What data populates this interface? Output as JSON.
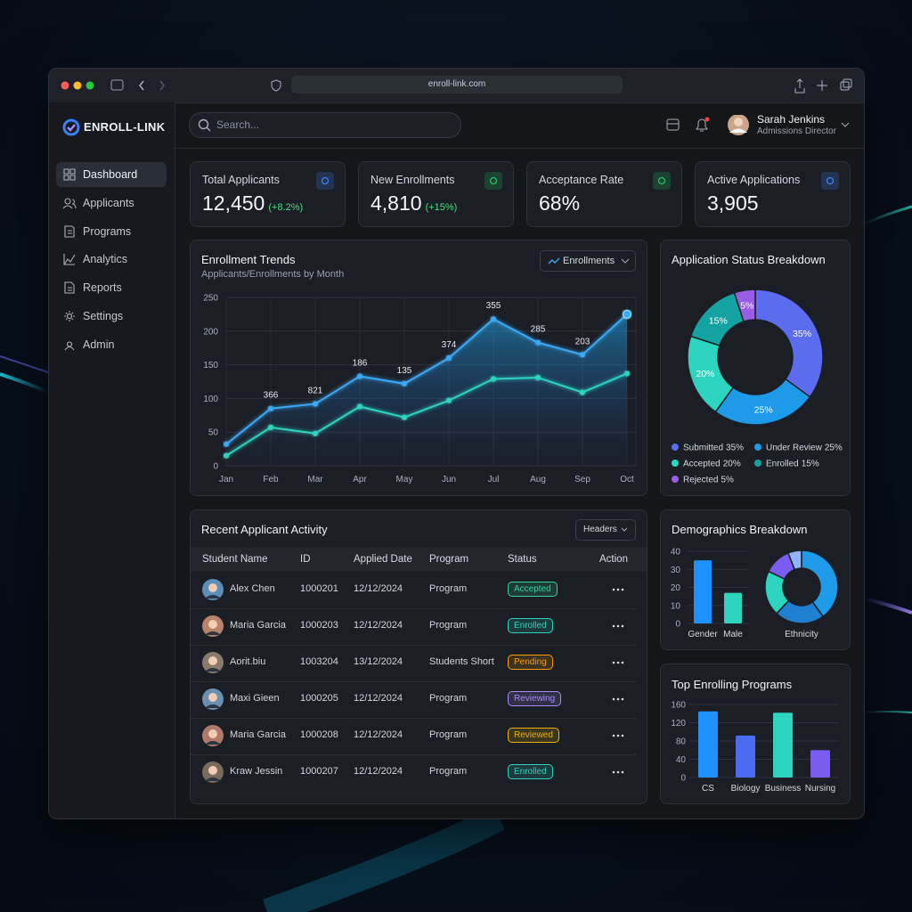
{
  "browser": {
    "url": "enroll-link.com"
  },
  "sidebar": {
    "brand": "ENROLL-LINK",
    "nav": [
      "Dashboard",
      "Applicants",
      "Programs",
      "Analytics",
      "Reports",
      "Settings",
      "Admin"
    ]
  },
  "header": {
    "search_placeholder": "Search...",
    "user": {
      "name": "Sarah Jenkins",
      "role": "Admissions Director"
    }
  },
  "kpis": [
    {
      "label": "Total Applicants",
      "value": "12,450",
      "change": "(+8.2%)"
    },
    {
      "label": "New Enrollments",
      "value": "4,810",
      "change": "(+15%)"
    },
    {
      "label": "Acceptance Rate",
      "value": "68%"
    },
    {
      "label": "Active Applications",
      "value": "3,905"
    }
  ],
  "chart_data": [
    {
      "type": "line",
      "title": "Enrollment Trends",
      "subtitle": "Applicants/Enrollments by Month",
      "dropdown": "Enrollments",
      "categories": [
        "Jan",
        "Feb",
        "Mar",
        "Apr",
        "May",
        "Jun",
        "Jul",
        "Aug",
        "Sep",
        "Oct"
      ],
      "series": [
        {
          "color": "#3ba9f5",
          "values": [
            32,
            85,
            92,
            133,
            122,
            160,
            218,
            183,
            165,
            225
          ]
        },
        {
          "color": "#2dd4bf",
          "values": [
            15,
            57,
            48,
            88,
            72,
            97,
            129,
            131,
            109,
            137
          ]
        }
      ],
      "annotations": [
        {
          "x": "Feb",
          "text": "366"
        },
        {
          "x": "Mar",
          "text": "821"
        },
        {
          "x": "Apr",
          "text": "186"
        },
        {
          "x": "May",
          "text": "135"
        },
        {
          "x": "Jun",
          "text": "374"
        },
        {
          "x": "Jul",
          "text": "355"
        },
        {
          "x": "Aug",
          "text": "285"
        },
        {
          "x": "Sep",
          "text": "203"
        }
      ],
      "ylim": [
        0,
        250
      ],
      "yticks": [
        0,
        50,
        100,
        150,
        200,
        250
      ],
      "grid": true
    },
    {
      "type": "pie",
      "title": "Application Status Breakdown",
      "categories": [
        "Submitted",
        "Under Review",
        "Accepted",
        "Enrolled",
        "Rejected"
      ],
      "values": [
        35,
        25,
        20,
        15,
        5
      ],
      "value_labels": [
        "35%",
        "25%",
        "20%",
        "15%",
        "5%"
      ],
      "colors": [
        "#5b6cf0",
        "#1e9be8",
        "#2dd4bf",
        "#14a3a3",
        "#9b5de5"
      ],
      "legend": "bottom"
    },
    {
      "type": "bar",
      "title": "Demographics Breakdown",
      "categories": [
        "Gender",
        "Male"
      ],
      "values": [
        35,
        17
      ],
      "colors": [
        "#1e90ff",
        "#2dd4bf"
      ],
      "ylim": [
        0,
        40
      ],
      "yticks": [
        0,
        10,
        20,
        30,
        40
      ],
      "grid": true
    },
    {
      "type": "pie",
      "title": "Ethnicity",
      "values": [
        40,
        22,
        20,
        12,
        6
      ],
      "colors": [
        "#1e9be8",
        "#1f7fd1",
        "#2dd4bf",
        "#7b5cf0",
        "#8fb3ff"
      ]
    },
    {
      "type": "bar",
      "title": "Top Enrolling Programs",
      "categories": [
        "CS",
        "Biology",
        "Business",
        "Nursing"
      ],
      "values": [
        145,
        92,
        142,
        60
      ],
      "colors": [
        "#1e90ff",
        "#4a6cf0",
        "#2dd4bf",
        "#7b5cf0"
      ],
      "ylim": [
        0,
        160
      ],
      "yticks": [
        0,
        40,
        80,
        120,
        160
      ],
      "grid": true
    }
  ],
  "table": {
    "title": "Recent Applicant Activity",
    "button": "Headers",
    "columns": [
      "Student Name",
      "ID",
      "Applied Date",
      "Program",
      "Status",
      "Action"
    ],
    "rows": [
      [
        "Alex Chen",
        "1000201",
        "12/12/2024",
        "Program",
        "Accepted"
      ],
      [
        "Maria Garcia",
        "1000203",
        "12/12/2024",
        "Program",
        "Enrolled"
      ],
      [
        "Aorit.biu",
        "1003204",
        "13/12/2024",
        "Students Short",
        "Pending"
      ],
      [
        "Maxi Gieen",
        "1000205",
        "12/12/2024",
        "Program",
        "Reviewing"
      ],
      [
        "Maria Garcia",
        "1000208",
        "12/12/2024",
        "Program",
        "Reviewed"
      ],
      [
        "Kraw Jessin",
        "1000207",
        "12/12/2024",
        "Program",
        "Enrolled"
      ]
    ],
    "status_colors": [
      "#34d399",
      "#2dd4bf",
      "#f59e0b",
      "#a78bfa",
      "#eab308",
      "#2dd4bf"
    ]
  }
}
